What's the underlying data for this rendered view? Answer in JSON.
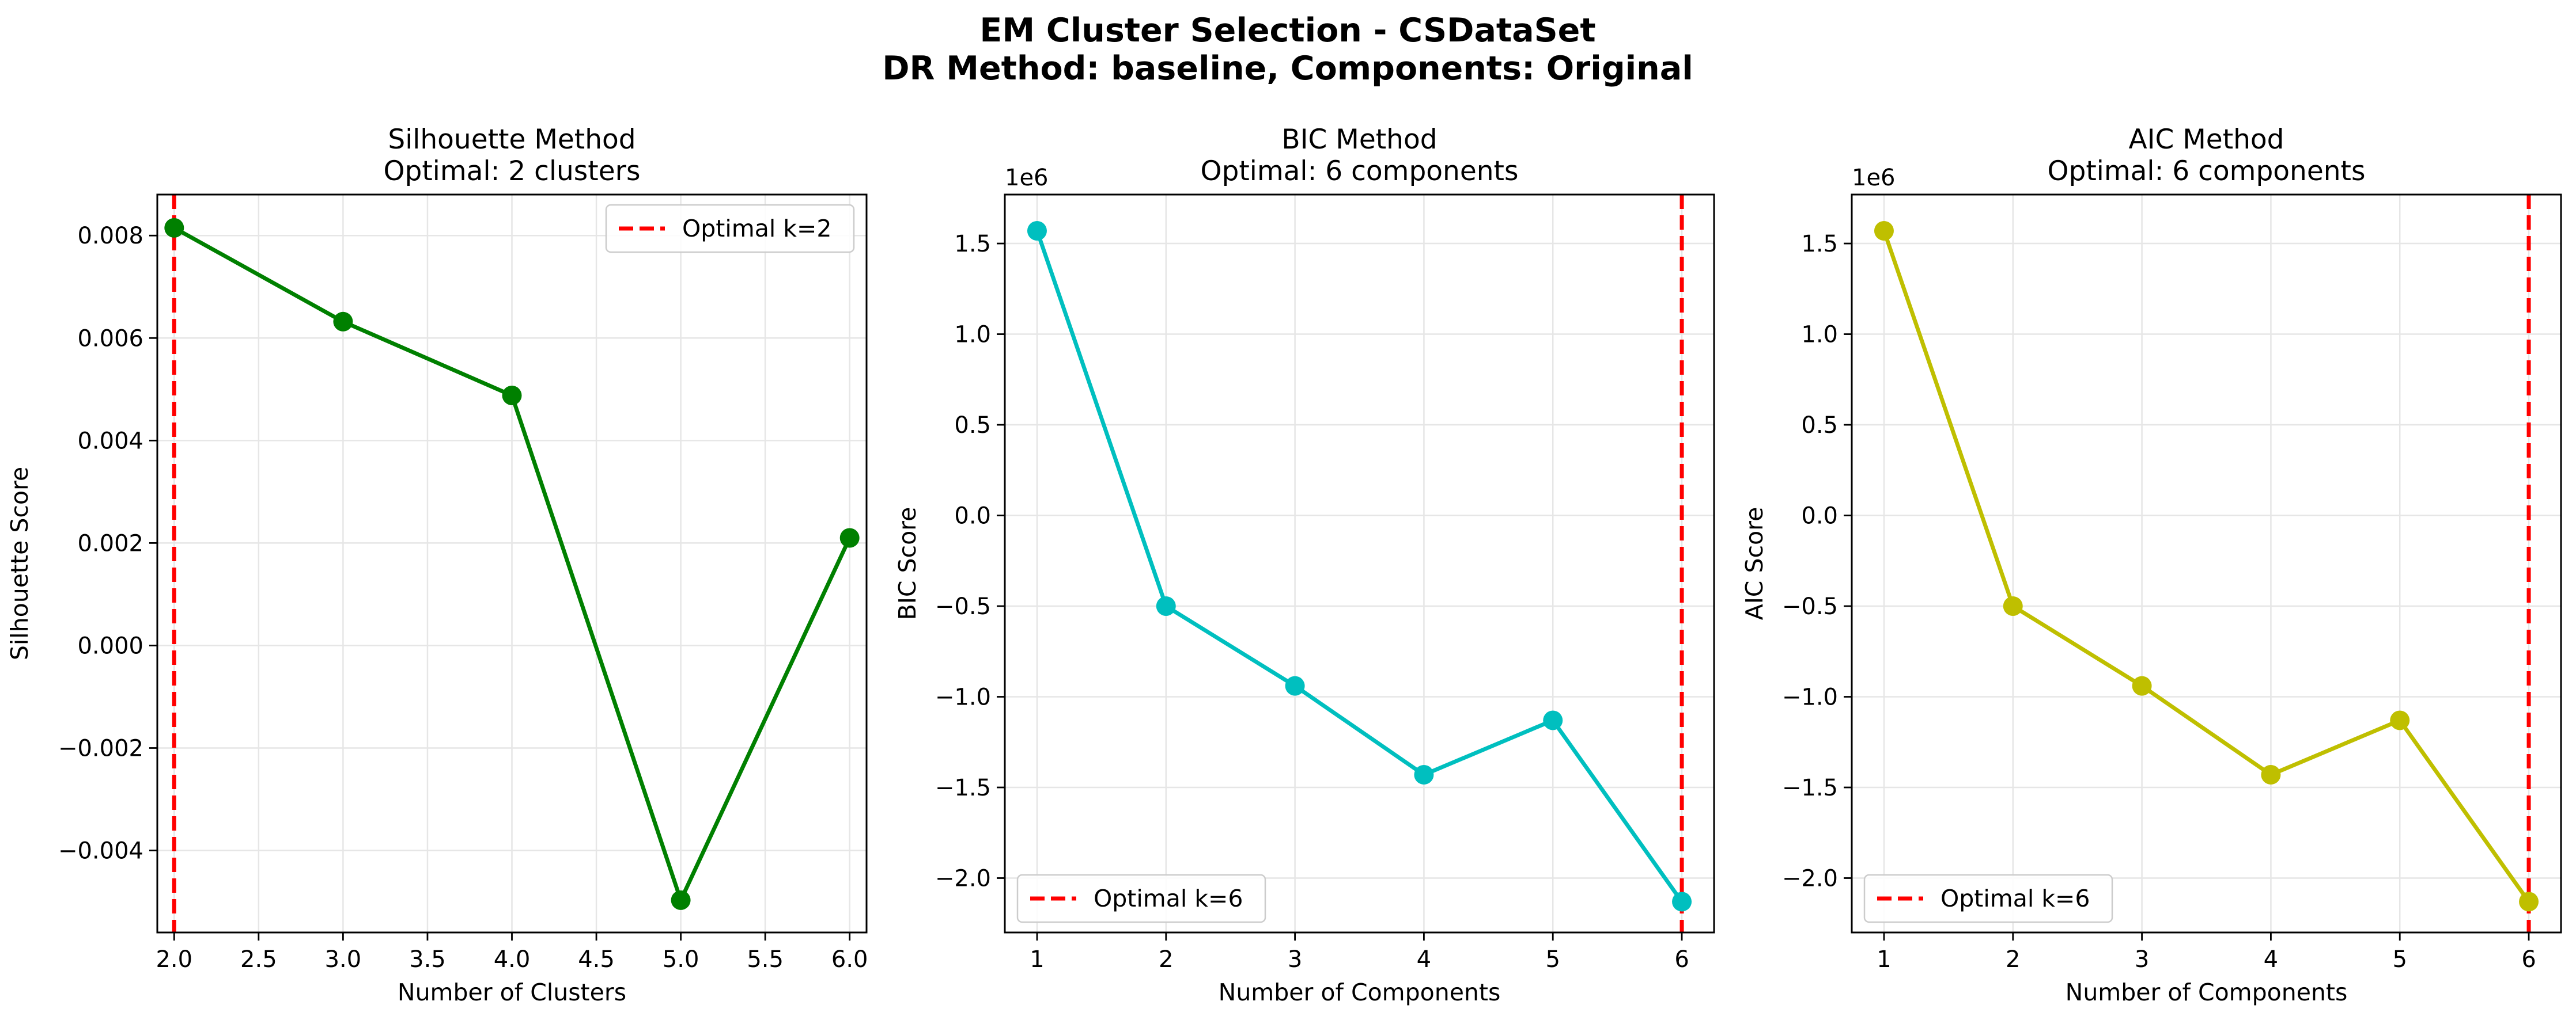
{
  "figure": {
    "title_line1": "EM Cluster Selection - CSDataSet",
    "title_line2": "DR Method: baseline, Components: Original"
  },
  "chart_data": [
    {
      "type": "line",
      "title_line1": "Silhouette Method",
      "title_line2": "Optimal: 2 clusters",
      "xlabel": "Number of Clusters",
      "ylabel": "Silhouette Score",
      "x": [
        2,
        3,
        4,
        5,
        6
      ],
      "values": [
        0.00815,
        0.00632,
        0.00488,
        -0.00497,
        0.0021
      ],
      "xlim": [
        1.9,
        6.1
      ],
      "ylim": [
        -0.0056,
        0.0088
      ],
      "xticks": [
        2.0,
        2.5,
        3.0,
        3.5,
        4.0,
        4.5,
        5.0,
        5.5,
        6.0
      ],
      "xtick_labels": [
        "2.0",
        "2.5",
        "3.0",
        "3.5",
        "4.0",
        "4.5",
        "5.0",
        "5.5",
        "6.0"
      ],
      "yticks": [
        -0.004,
        -0.002,
        0.0,
        0.002,
        0.004,
        0.006,
        0.008
      ],
      "ytick_labels": [
        "−0.004",
        "−0.002",
        "0.000",
        "0.002",
        "0.004",
        "0.006",
        "0.008"
      ],
      "offset_text": "",
      "line_color": "#008000",
      "optimal_x": 2,
      "optimal_label": "Optimal k=2",
      "optimal_color": "#ff0000",
      "legend_position": "upper right",
      "grid": true
    },
    {
      "type": "line",
      "title_line1": "BIC Method",
      "title_line2": "Optimal: 6 components",
      "xlabel": "Number of Components",
      "ylabel": "BIC Score",
      "x": [
        1,
        2,
        3,
        4,
        5,
        6
      ],
      "values": [
        1.57,
        -0.5,
        -0.94,
        -1.43,
        -1.13,
        -2.13
      ],
      "xlim": [
        0.75,
        6.25
      ],
      "ylim": [
        -2.3,
        1.77
      ],
      "xticks": [
        1,
        2,
        3,
        4,
        5,
        6
      ],
      "xtick_labels": [
        "1",
        "2",
        "3",
        "4",
        "5",
        "6"
      ],
      "yticks": [
        -2.0,
        -1.5,
        -1.0,
        -0.5,
        0.0,
        0.5,
        1.0,
        1.5
      ],
      "ytick_labels": [
        "−2.0",
        "−1.5",
        "−1.0",
        "−0.5",
        "0.0",
        "0.5",
        "1.0",
        "1.5"
      ],
      "offset_text": "1e6",
      "line_color": "#00bfbf",
      "optimal_x": 6,
      "optimal_label": "Optimal k=6",
      "optimal_color": "#ff0000",
      "legend_position": "lower left",
      "grid": true
    },
    {
      "type": "line",
      "title_line1": "AIC Method",
      "title_line2": "Optimal: 6 components",
      "xlabel": "Number of Components",
      "ylabel": "AIC Score",
      "x": [
        1,
        2,
        3,
        4,
        5,
        6
      ],
      "values": [
        1.57,
        -0.5,
        -0.94,
        -1.43,
        -1.13,
        -2.13
      ],
      "xlim": [
        0.75,
        6.25
      ],
      "ylim": [
        -2.3,
        1.77
      ],
      "xticks": [
        1,
        2,
        3,
        4,
        5,
        6
      ],
      "xtick_labels": [
        "1",
        "2",
        "3",
        "4",
        "5",
        "6"
      ],
      "yticks": [
        -2.0,
        -1.5,
        -1.0,
        -0.5,
        0.0,
        0.5,
        1.0,
        1.5
      ],
      "ytick_labels": [
        "−2.0",
        "−1.5",
        "−1.0",
        "−0.5",
        "0.0",
        "0.5",
        "1.0",
        "1.5"
      ],
      "offset_text": "1e6",
      "line_color": "#bfbf00",
      "optimal_x": 6,
      "optimal_label": "Optimal k=6",
      "optimal_color": "#ff0000",
      "legend_position": "lower left",
      "grid": true
    }
  ]
}
